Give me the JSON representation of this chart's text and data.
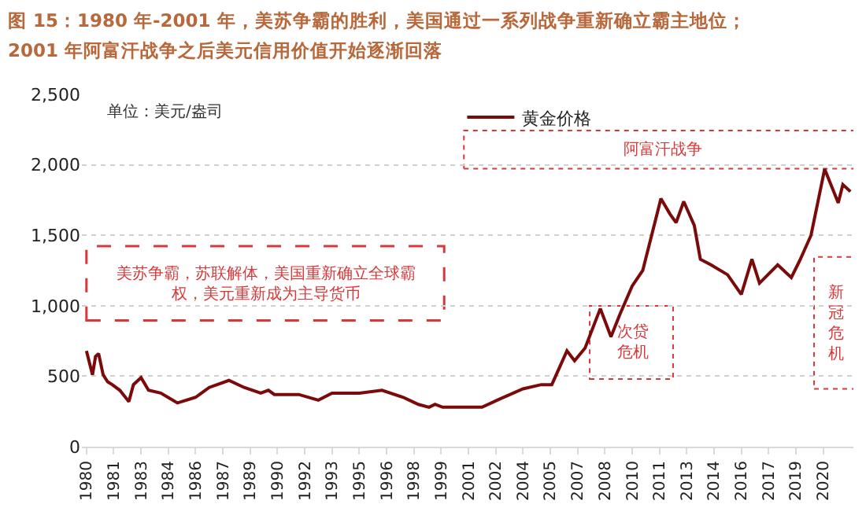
{
  "chart_data": {
    "type": "line",
    "title": "图 15：1980 年-2001 年，美苏争霸的胜利，美国通过一系列战争重新确立霸主地位；",
    "subtitle": "2001 年阿富汗战争之后美元信用价值开始逐渐回落",
    "annotations": [
      "单位：美元/盎司",
      "美苏争霸，苏联解体，美国重新确立全球霸权，美元重新成为主导货币",
      "阿富汗战争",
      "次贷危机",
      "新冠危机"
    ],
    "x": [
      "1980-01",
      "1980-05",
      "1980-07",
      "1980-09",
      "1980-12",
      "1981-03",
      "1981-06",
      "1981-11",
      "1982-05",
      "1982-08",
      "1983-01",
      "1983-06",
      "1984-02",
      "1985-01",
      "1986-01",
      "1986-10",
      "1987-11",
      "1988-09",
      "1989-08",
      "1990-01",
      "1990-05",
      "1991-09",
      "1992-10",
      "1993-07",
      "1995-01",
      "1996-04",
      "1997-06",
      "1998-04",
      "1998-11",
      "1999-03",
      "1999-08",
      "2001-10",
      "2002-08",
      "2004-01",
      "2005-01",
      "2005-08",
      "2006-06",
      "2006-11",
      "2007-06",
      "2008-04",
      "2008-11",
      "2009-05",
      "2010-01",
      "2010-08",
      "2011-08",
      "2012-02",
      "2012-06",
      "2012-11",
      "2013-06",
      "2013-10",
      "2014-05",
      "2015-04",
      "2016-01",
      "2016-08",
      "2017-01",
      "2018-01",
      "2018-10",
      "2019-04",
      "2019-11",
      "2020-08",
      "2021-05",
      "2021-08",
      "2022-01"
    ],
    "series": [
      {
        "name": "黄金价格",
        "color": "#7b0a0a",
        "values": [
          680,
          510,
          640,
          660,
          510,
          460,
          440,
          400,
          320,
          440,
          490,
          400,
          380,
          310,
          350,
          420,
          470,
          420,
          380,
          400,
          370,
          370,
          330,
          380,
          380,
          400,
          350,
          300,
          280,
          300,
          280,
          280,
          330,
          410,
          440,
          440,
          680,
          610,
          700,
          980,
          780,
          940,
          1140,
          1250,
          1760,
          1650,
          1590,
          1740,
          1570,
          1330,
          1290,
          1220,
          1080,
          1330,
          1160,
          1290,
          1200,
          1330,
          1500,
          1970,
          1730,
          1860,
          1810
        ]
      }
    ],
    "xlim": [
      "1979-10",
      "2022-03"
    ],
    "xticks": [
      {
        "value": "1980-01",
        "label": "1980"
      },
      {
        "value": "1981-07",
        "label": "1981"
      },
      {
        "value": "1983-01",
        "label": "1983"
      },
      {
        "value": "1984-07",
        "label": "1984"
      },
      {
        "value": "1986-01",
        "label": "1986"
      },
      {
        "value": "1987-07",
        "label": "1987"
      },
      {
        "value": "1989-01",
        "label": "1989"
      },
      {
        "value": "1990-07",
        "label": "1990"
      },
      {
        "value": "1992-01",
        "label": "1992"
      },
      {
        "value": "1993-07",
        "label": "1993"
      },
      {
        "value": "1995-01",
        "label": "1995"
      },
      {
        "value": "1996-07",
        "label": "1996"
      },
      {
        "value": "1998-01",
        "label": "1998"
      },
      {
        "value": "1999-07",
        "label": "1999"
      },
      {
        "value": "2001-01",
        "label": "2001"
      },
      {
        "value": "2002-07",
        "label": "2002"
      },
      {
        "value": "2004-01",
        "label": "2004"
      },
      {
        "value": "2005-07",
        "label": "2005"
      },
      {
        "value": "2007-01",
        "label": "2007"
      },
      {
        "value": "2008-07",
        "label": "2008"
      },
      {
        "value": "2010-01",
        "label": "2010"
      },
      {
        "value": "2011-07",
        "label": "2011"
      },
      {
        "value": "2013-01",
        "label": "2013"
      },
      {
        "value": "2014-07",
        "label": "2014"
      },
      {
        "value": "2016-01",
        "label": "2016"
      },
      {
        "value": "2017-07",
        "label": "2017"
      },
      {
        "value": "2019-01",
        "label": "2019"
      },
      {
        "value": "2020-07",
        "label": "2020"
      }
    ],
    "ylim": [
      0,
      2500
    ],
    "yticks": [
      0,
      {
        "value": 500,
        "label": "500"
      },
      {
        "value": 1000,
        "label": "1,000"
      },
      {
        "value": 1500,
        "label": "1,500"
      },
      {
        "value": 2000,
        "label": "2,000"
      },
      {
        "value": 2500,
        "label": "2,500"
      }
    ],
    "grid": "y",
    "legend": "top",
    "marker": "none",
    "line_style": "solid"
  }
}
